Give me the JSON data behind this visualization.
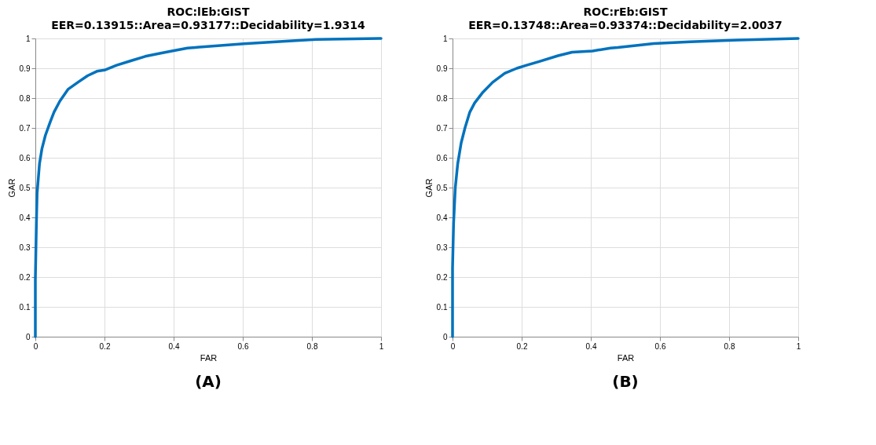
{
  "chart_data": [
    {
      "type": "line",
      "title": "ROC:lEb:GIST",
      "subtitle": "EER=0.13915::Area=0.93177::Decidability=1.9314",
      "xlabel": "FAR",
      "ylabel": "GAR",
      "annotations": [
        "(A)"
      ],
      "grid": true,
      "xlim": [
        0,
        1
      ],
      "ylim": [
        0,
        1
      ],
      "xticks": [
        0,
        0.2,
        0.4,
        0.6,
        0.8,
        1
      ],
      "yticks": [
        0,
        0.1,
        0.2,
        0.3,
        0.4,
        0.5,
        0.6,
        0.7,
        0.8,
        0.9,
        1
      ],
      "line_style": "solid",
      "series": [
        {
          "color": "#0072bd",
          "x": [
            0,
            0,
            0.003,
            0.005,
            0.012,
            0.019,
            0.029,
            0.043,
            0.054,
            0.071,
            0.095,
            0.123,
            0.151,
            0.178,
            0.2,
            0.235,
            0.276,
            0.318,
            0.36,
            0.395,
            0.44,
            0.463,
            0.603,
            0.743,
            0.812,
            0.994,
            1
          ],
          "values": [
            0,
            0.19,
            0.38,
            0.48,
            0.58,
            0.63,
            0.675,
            0.72,
            0.753,
            0.79,
            0.83,
            0.853,
            0.875,
            0.89,
            0.894,
            0.91,
            0.925,
            0.94,
            0.95,
            0.958,
            0.968,
            0.97,
            0.982,
            0.992,
            0.997,
            1,
            1
          ]
        }
      ]
    },
    {
      "type": "line",
      "title": "ROC:rEb:GIST",
      "subtitle": "EER=0.13748::Area=0.93374::Decidability=2.0037",
      "xlabel": "FAR",
      "ylabel": "GAR",
      "annotations": [
        "(B)"
      ],
      "grid": true,
      "xlim": [
        0,
        1
      ],
      "ylim": [
        0,
        1
      ],
      "xticks": [
        0,
        0.2,
        0.4,
        0.6,
        0.8,
        1
      ],
      "yticks": [
        0,
        0.1,
        0.2,
        0.3,
        0.4,
        0.5,
        0.6,
        0.7,
        0.8,
        0.9,
        1
      ],
      "line_style": "solid",
      "series": [
        {
          "color": "#0072bd",
          "x": [
            0,
            0,
            0.003,
            0.008,
            0.015,
            0.025,
            0.036,
            0.05,
            0.064,
            0.088,
            0.116,
            0.151,
            0.186,
            0.214,
            0.249,
            0.305,
            0.346,
            0.405,
            0.457,
            0.478,
            0.582,
            0.687,
            0.827,
            1
          ],
          "values": [
            0,
            0.23,
            0.38,
            0.5,
            0.58,
            0.65,
            0.7,
            0.753,
            0.784,
            0.82,
            0.853,
            0.883,
            0.9,
            0.91,
            0.922,
            0.942,
            0.954,
            0.958,
            0.968,
            0.97,
            0.983,
            0.989,
            0.995,
            1
          ]
        }
      ]
    }
  ]
}
